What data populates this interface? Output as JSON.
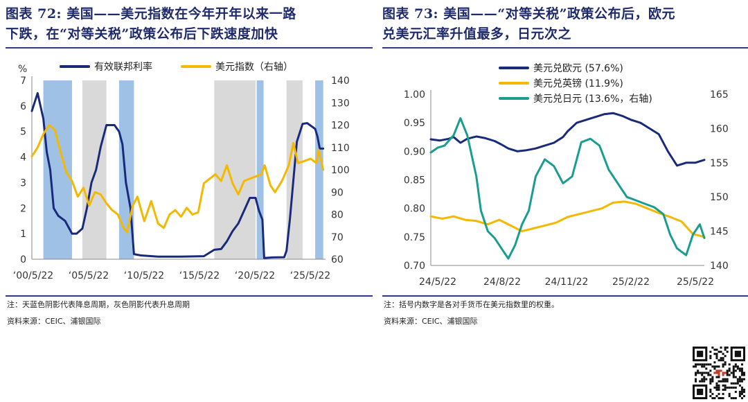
{
  "figures": [
    {
      "id": "fig72",
      "label": "图表 72:",
      "title_line1": "美国——美元指数在今年开年以来一路",
      "title_line2": "下跌，在“对等关税”政策公布后下跌速度加快",
      "note": "注：天蓝色阴影代表降息周期，灰色阴影代表升息周期",
      "source": "资料来源：CEIC、浦银国际"
    },
    {
      "id": "fig73",
      "label": "图表 73:",
      "title_line1": "美国——“对等关税”政策公布后，欧元",
      "title_line2": "兑美元汇率升值最多，日元次之",
      "note": "注：括号内数字是各对手货币在美元指数里的权重。",
      "source": "资料来源：CEIC、浦银国际"
    }
  ],
  "chart_data": [
    {
      "type": "line",
      "unit_label": "%",
      "x_tick_labels": [
        "‘00/5/22",
        "‘05/5/22",
        "‘10/5/22",
        "‘15/5/22",
        "‘20/5/22",
        "‘25/5/22"
      ],
      "x_range": [
        2000.0,
        2025.6
      ],
      "y_left": {
        "range": [
          0,
          7
        ],
        "ticks": [
          0,
          1,
          2,
          3,
          4,
          5,
          6,
          7
        ]
      },
      "y_right": {
        "range": [
          60,
          140
        ],
        "ticks": [
          60,
          70,
          80,
          90,
          100,
          110,
          120,
          130,
          140
        ]
      },
      "shading": {
        "cut_color": "#9fc1e6",
        "hike_color": "#d9d9d9",
        "cut_periods": [
          [
            2001.0,
            2003.5
          ],
          [
            2007.6,
            2008.9
          ],
          [
            2019.6,
            2020.2
          ],
          [
            2024.7,
            2025.4
          ]
        ],
        "hike_periods": [
          [
            2004.4,
            2006.5
          ],
          [
            2015.9,
            2019.5
          ],
          [
            2022.2,
            2023.6
          ]
        ]
      },
      "series": [
        {
          "name": "有效联邦利率",
          "axis": "left",
          "color": "#1a2a7a",
          "x": [
            2000.0,
            2000.5,
            2001.0,
            2001.3,
            2001.6,
            2001.9,
            2002.3,
            2002.9,
            2003.5,
            2003.9,
            2004.4,
            2004.8,
            2005.2,
            2005.6,
            2006.0,
            2006.5,
            2007.2,
            2007.6,
            2007.9,
            2008.2,
            2008.6,
            2008.9,
            2009.5,
            2011.0,
            2013.0,
            2015.0,
            2015.9,
            2016.5,
            2017.0,
            2017.5,
            2018.0,
            2018.5,
            2019.0,
            2019.5,
            2019.8,
            2020.1,
            2020.25,
            2021.0,
            2022.0,
            2022.2,
            2022.5,
            2022.8,
            2023.1,
            2023.6,
            2024.0,
            2024.7,
            2024.9,
            2025.1,
            2025.4
          ],
          "y": [
            5.8,
            6.5,
            5.5,
            4.2,
            3.5,
            2.0,
            1.7,
            1.5,
            1.0,
            1.0,
            1.2,
            2.0,
            3.0,
            3.5,
            4.4,
            5.25,
            5.25,
            5.0,
            4.5,
            3.0,
            2.0,
            0.2,
            0.15,
            0.1,
            0.1,
            0.12,
            0.37,
            0.4,
            0.7,
            1.1,
            1.4,
            1.9,
            2.4,
            2.4,
            1.9,
            1.55,
            0.05,
            0.07,
            0.08,
            0.33,
            1.6,
            3.1,
            4.6,
            5.3,
            5.33,
            5.1,
            4.8,
            4.33,
            4.33
          ]
        },
        {
          "name": "美元指数（右轴）",
          "axis": "right",
          "color": "#f5b800",
          "x": [
            2000.0,
            2000.5,
            2001.0,
            2001.5,
            2002.0,
            2002.5,
            2003.0,
            2003.5,
            2004.0,
            2004.5,
            2005.0,
            2005.5,
            2006.0,
            2006.5,
            2007.0,
            2007.5,
            2008.0,
            2008.3,
            2008.8,
            2009.2,
            2009.8,
            2010.4,
            2011.0,
            2011.5,
            2012.0,
            2012.5,
            2013.0,
            2013.5,
            2014.0,
            2014.5,
            2015.0,
            2015.5,
            2016.0,
            2016.5,
            2017.0,
            2017.5,
            2018.0,
            2018.5,
            2019.0,
            2019.5,
            2020.0,
            2020.3,
            2020.8,
            2021.2,
            2021.8,
            2022.4,
            2022.8,
            2023.2,
            2023.8,
            2024.3,
            2024.8,
            2025.0,
            2025.4
          ],
          "y": [
            106,
            110,
            116,
            120,
            118,
            108,
            99,
            95,
            88,
            92,
            84,
            90,
            89,
            85,
            82,
            80,
            74,
            72,
            84,
            88,
            77,
            86,
            76,
            74,
            80,
            82,
            79,
            83,
            80,
            81,
            94,
            96,
            98,
            95,
            102,
            94,
            89,
            95,
            96,
            97,
            98,
            102,
            93,
            90,
            95,
            102,
            112,
            103,
            104,
            105,
            103,
            109,
            100
          ]
        }
      ]
    },
    {
      "type": "line",
      "x_tick_labels": [
        "24/5/22",
        "24/8/22",
        "24/11/22",
        "25/2/22",
        "25/5/22"
      ],
      "x_range": [
        0,
        12
      ],
      "y_left": {
        "range": [
          0.7,
          1.0
        ],
        "ticks": [
          "0.70",
          "0.75",
          "0.80",
          "0.85",
          "0.90",
          "0.95",
          "1.00"
        ]
      },
      "y_right": {
        "range": [
          140,
          165
        ],
        "ticks": [
          140,
          145,
          150,
          155,
          160,
          165
        ]
      },
      "series": [
        {
          "name": "美元兑欧元 (57.6%)",
          "axis": "left",
          "color": "#1a2a7a",
          "x": [
            0.0,
            0.4,
            0.8,
            1.0,
            1.3,
            1.6,
            2.0,
            2.4,
            2.8,
            3.1,
            3.4,
            3.8,
            4.2,
            4.6,
            5.0,
            5.4,
            5.8,
            6.0,
            6.4,
            6.8,
            7.2,
            7.6,
            8.0,
            8.4,
            8.8,
            9.2,
            9.6,
            10.0,
            10.4,
            10.8,
            11.2,
            11.6,
            12.0
          ],
          "y": [
            0.921,
            0.919,
            0.922,
            0.925,
            0.915,
            0.922,
            0.926,
            0.923,
            0.918,
            0.912,
            0.905,
            0.9,
            0.902,
            0.905,
            0.91,
            0.915,
            0.925,
            0.935,
            0.95,
            0.955,
            0.96,
            0.965,
            0.967,
            0.962,
            0.955,
            0.95,
            0.94,
            0.93,
            0.9,
            0.875,
            0.88,
            0.88,
            0.885
          ]
        },
        {
          "name": "美元兑英镑 (11.9%)",
          "axis": "left",
          "color": "#f5b800",
          "x": [
            0.0,
            0.5,
            1.0,
            1.5,
            2.0,
            2.5,
            3.0,
            3.5,
            4.0,
            4.5,
            5.0,
            5.5,
            6.0,
            6.5,
            7.0,
            7.5,
            8.0,
            8.5,
            9.0,
            9.5,
            10.0,
            10.5,
            11.0,
            11.5,
            12.0
          ],
          "y": [
            0.786,
            0.782,
            0.786,
            0.78,
            0.778,
            0.772,
            0.78,
            0.77,
            0.76,
            0.765,
            0.77,
            0.775,
            0.785,
            0.79,
            0.795,
            0.8,
            0.81,
            0.812,
            0.808,
            0.8,
            0.792,
            0.785,
            0.777,
            0.755,
            0.75
          ]
        },
        {
          "name": "美元兑日元 (13.6%，右轴)",
          "axis": "right",
          "color": "#199d8f",
          "x": [
            0.0,
            0.3,
            0.6,
            1.0,
            1.3,
            1.6,
            2.0,
            2.2,
            2.5,
            2.8,
            3.1,
            3.4,
            3.7,
            4.0,
            4.3,
            4.6,
            5.0,
            5.4,
            5.8,
            6.2,
            6.6,
            7.0,
            7.4,
            7.8,
            8.2,
            8.6,
            9.0,
            9.4,
            9.8,
            10.2,
            10.5,
            10.8,
            11.2,
            11.5,
            11.8,
            12.0
          ],
          "y": [
            156.5,
            157.2,
            157.5,
            159.0,
            161.5,
            159.0,
            153.0,
            148.0,
            145.0,
            144.0,
            142.5,
            141.0,
            143.0,
            146.0,
            148.0,
            153.0,
            155.5,
            154.5,
            152.0,
            153.0,
            158.0,
            158.5,
            157.5,
            154.0,
            152.0,
            150.0,
            149.5,
            149.0,
            148.5,
            147.5,
            144.5,
            142.5,
            141.5,
            144.5,
            146.0,
            144.0
          ]
        }
      ]
    }
  ],
  "qr_code": "qr-code-icon"
}
